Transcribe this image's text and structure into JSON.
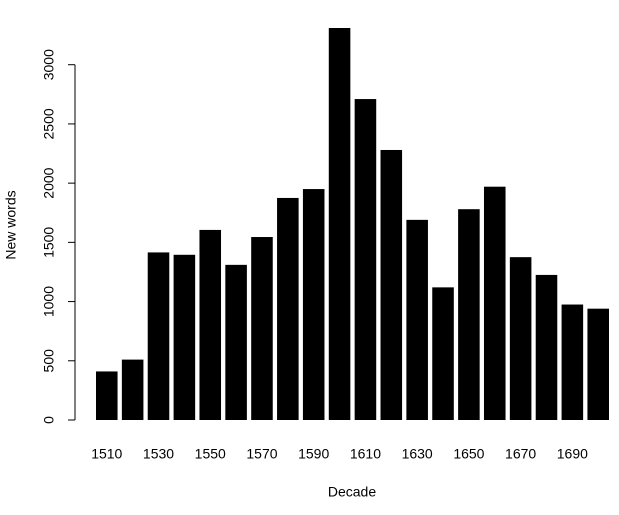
{
  "chart_data": {
    "type": "bar",
    "x_label": "Decade",
    "y_label": "New words",
    "categories": [
      "1510",
      null,
      "1530",
      null,
      "1550",
      null,
      "1570",
      null,
      "1590",
      null,
      "1610",
      null,
      "1630",
      null,
      "1650",
      null,
      "1670",
      null,
      "1690",
      null
    ],
    "values": [
      410,
      510,
      1415,
      1395,
      1605,
      1310,
      1545,
      1875,
      1950,
      3310,
      2710,
      2280,
      1690,
      1120,
      1780,
      1970,
      1375,
      1225,
      975,
      940
    ],
    "color": "#000000",
    "ylim": [
      0,
      3310
    ],
    "yticks": [
      0,
      500,
      1000,
      1500,
      2000,
      2500,
      3000
    ],
    "grid": false
  }
}
